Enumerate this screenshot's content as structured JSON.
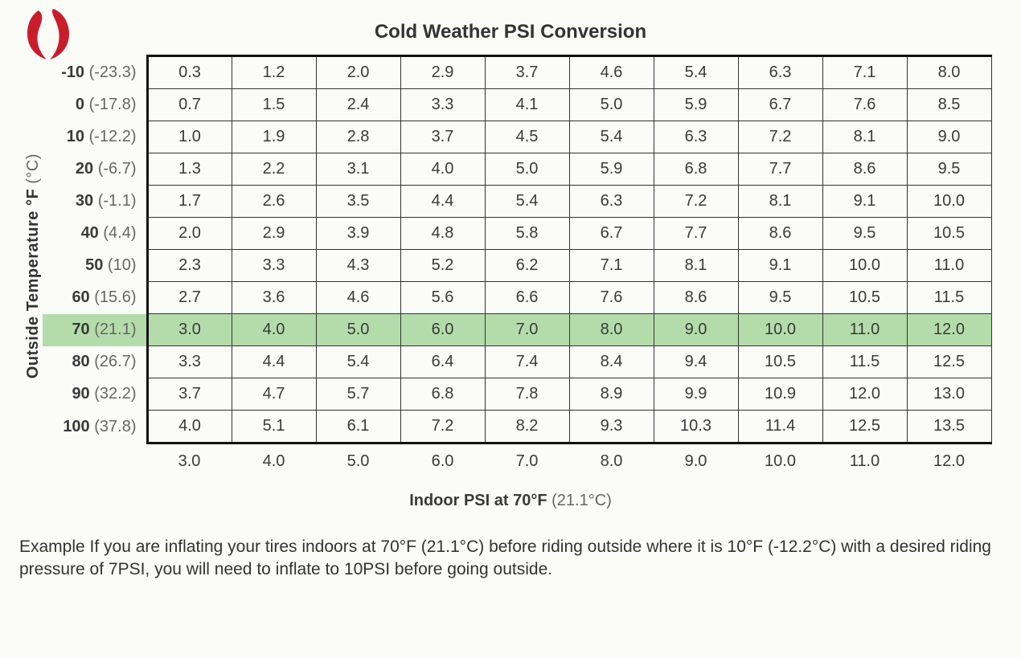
{
  "title": "Cold Weather PSI Conversion",
  "y_axis_label": "Outside Temperature °F",
  "y_axis_paren": "(°C)",
  "x_axis_label": "Indoor PSI at 70°F",
  "x_axis_paren": "(21.1°C)",
  "highlight_row_index": 8,
  "colors": {
    "highlight": "#b4dcaa",
    "border": "#333333",
    "border_heavy": "#111111",
    "background": "#fbfbf8",
    "text": "#3a3a3a",
    "logo": "#c81e2b"
  },
  "row_labels": [
    {
      "f": "-10",
      "c": "(-23.3)"
    },
    {
      "f": "0",
      "c": "(-17.8)"
    },
    {
      "f": "10",
      "c": "(-12.2)"
    },
    {
      "f": "20",
      "c": "(-6.7)"
    },
    {
      "f": "30",
      "c": "(-1.1)"
    },
    {
      "f": "40",
      "c": "(4.4)"
    },
    {
      "f": "50",
      "c": "(10)"
    },
    {
      "f": "60",
      "c": "(15.6)"
    },
    {
      "f": "70",
      "c": "(21.1)"
    },
    {
      "f": "80",
      "c": "(26.7)"
    },
    {
      "f": "90",
      "c": "(32.2)"
    },
    {
      "f": "100",
      "c": "(37.8)"
    }
  ],
  "column_footer": [
    "3.0",
    "4.0",
    "5.0",
    "6.0",
    "7.0",
    "8.0",
    "9.0",
    "10.0",
    "11.0",
    "12.0"
  ],
  "cells": [
    [
      "0.3",
      "1.2",
      "2.0",
      "2.9",
      "3.7",
      "4.6",
      "5.4",
      "6.3",
      "7.1",
      "8.0"
    ],
    [
      "0.7",
      "1.5",
      "2.4",
      "3.3",
      "4.1",
      "5.0",
      "5.9",
      "6.7",
      "7.6",
      "8.5"
    ],
    [
      "1.0",
      "1.9",
      "2.8",
      "3.7",
      "4.5",
      "5.4",
      "6.3",
      "7.2",
      "8.1",
      "9.0"
    ],
    [
      "1.3",
      "2.2",
      "3.1",
      "4.0",
      "5.0",
      "5.9",
      "6.8",
      "7.7",
      "8.6",
      "9.5"
    ],
    [
      "1.7",
      "2.6",
      "3.5",
      "4.4",
      "5.4",
      "6.3",
      "7.2",
      "8.1",
      "9.1",
      "10.0"
    ],
    [
      "2.0",
      "2.9",
      "3.9",
      "4.8",
      "5.8",
      "6.7",
      "7.7",
      "8.6",
      "9.5",
      "10.5"
    ],
    [
      "2.3",
      "3.3",
      "4.3",
      "5.2",
      "6.2",
      "7.1",
      "8.1",
      "9.1",
      "10.0",
      "11.0"
    ],
    [
      "2.7",
      "3.6",
      "4.6",
      "5.6",
      "6.6",
      "7.6",
      "8.6",
      "9.5",
      "10.5",
      "11.5"
    ],
    [
      "3.0",
      "4.0",
      "5.0",
      "6.0",
      "7.0",
      "8.0",
      "9.0",
      "10.0",
      "11.0",
      "12.0"
    ],
    [
      "3.3",
      "4.4",
      "5.4",
      "6.4",
      "7.4",
      "8.4",
      "9.4",
      "10.5",
      "11.5",
      "12.5"
    ],
    [
      "3.7",
      "4.7",
      "5.7",
      "6.8",
      "7.8",
      "8.9",
      "9.9",
      "10.9",
      "12.0",
      "13.0"
    ],
    [
      "4.0",
      "5.1",
      "6.1",
      "7.2",
      "8.2",
      "9.3",
      "10.3",
      "11.4",
      "12.5",
      "13.5"
    ]
  ],
  "example_text": "Example  If you are inflating your tires indoors at 70°F (21.1°C) before riding outside where it is 10°F (-12.2°C) with a desired riding pressure of 7PSI, you will need to inflate to 10PSI before going outside."
}
